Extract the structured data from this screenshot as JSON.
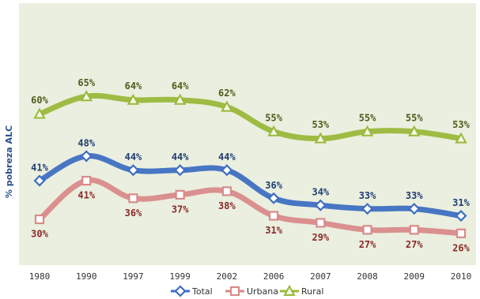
{
  "chart_data": {
    "type": "line",
    "ylabel": "% pobreza ALC",
    "categories": [
      "1980",
      "1990",
      "1997",
      "1999",
      "2002",
      "2006",
      "2007",
      "2008",
      "2009",
      "2010"
    ],
    "series": [
      {
        "name": "Total",
        "values": [
          41,
          48,
          44,
          44,
          44,
          36,
          34,
          33,
          33,
          31
        ],
        "labels": [
          "41%",
          "48%",
          "44%",
          "44%",
          "44%",
          "36%",
          "34%",
          "33%",
          "33%",
          "31%"
        ],
        "color": "#3f6fc2",
        "label_color": "#1f3d73",
        "marker": "diamond"
      },
      {
        "name": "Urbana",
        "values": [
          30,
          41,
          36,
          37,
          38,
          31,
          29,
          27,
          27,
          26
        ],
        "labels": [
          "30%",
          "41%",
          "36%",
          "37%",
          "38%",
          "31%",
          "29%",
          "27%",
          "27%",
          "26%"
        ],
        "color": "#d98a8a",
        "label_color": "#8c2a2a",
        "marker": "square"
      },
      {
        "name": "Rural",
        "values": [
          60,
          65,
          64,
          64,
          62,
          55,
          53,
          55,
          55,
          53
        ],
        "labels": [
          "60%",
          "65%",
          "64%",
          "64%",
          "62%",
          "55%",
          "53%",
          "55%",
          "55%",
          "53%"
        ],
        "color": "#9ab83a",
        "label_color": "#4d5e1c",
        "marker": "triangle"
      }
    ],
    "legend_position": "bottom",
    "grid": false,
    "plot_background": "#eaefdf"
  }
}
